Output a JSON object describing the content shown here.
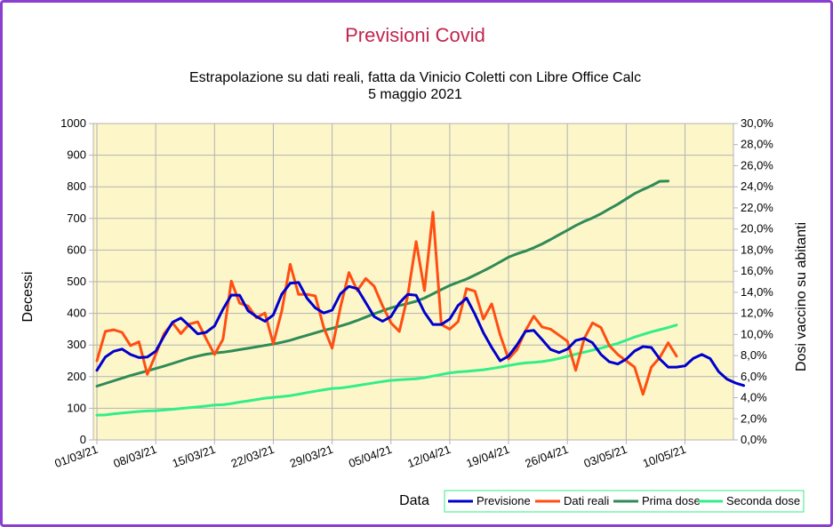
{
  "chart_data": {
    "type": "line",
    "title": "Previsioni Covid",
    "subtitle_line1": "Estrapolazione su dati reali, fatta da Vinicio Coletti con Libre Office Calc",
    "subtitle_line2": "5 maggio 2021",
    "xlabel": "Data",
    "ylabel": "Decessi",
    "y2label": "Dosi vaccino su abitanti",
    "x_start": "01/03/21",
    "x_days": 80,
    "ylim": [
      0,
      1000
    ],
    "y2lim": [
      0,
      0.3
    ],
    "x_ticks": [
      "01/03/21",
      "08/03/21",
      "15/03/21",
      "22/03/21",
      "29/03/21",
      "05/04/21",
      "12/04/21",
      "19/04/21",
      "26/04/21",
      "03/05/21",
      "10/05/21"
    ],
    "y_ticks": [
      "0",
      "100",
      "200",
      "300",
      "400",
      "500",
      "600",
      "700",
      "800",
      "900",
      "1000"
    ],
    "y2_ticks": [
      "0,0%",
      "2,0%",
      "4,0%",
      "6,0%",
      "8,0%",
      "10,0%",
      "12,0%",
      "14,0%",
      "16,0%",
      "18,0%",
      "20,0%",
      "22,0%",
      "24,0%",
      "26,0%",
      "28,0%",
      "30,0%"
    ],
    "grid": true,
    "legend_position": "bottom-right",
    "colors": {
      "plot_background": "#fdf6c9",
      "grid": "#b3b3b3",
      "Previsione": "#0000cc",
      "Dati reali": "#ff4e12",
      "Prima dose": "#2e8b57",
      "Seconda dose": "#33ee88"
    },
    "series": [
      {
        "name": "Previsione",
        "axis": "left",
        "start_day": 0,
        "values": [
          220,
          262,
          280,
          287,
          270,
          260,
          262,
          280,
          328,
          372,
          385,
          361,
          335,
          340,
          360,
          413,
          458,
          457,
          408,
          390,
          375,
          395,
          460,
          495,
          498,
          448,
          417,
          401,
          410,
          462,
          485,
          478,
          434,
          390,
          375,
          390,
          433,
          460,
          457,
          403,
          365,
          365,
          382,
          425,
          448,
          397,
          339,
          292,
          250,
          265,
          300,
          343,
          346,
          317,
          286,
          276,
          287,
          314,
          321,
          307,
          270,
          247,
          240,
          255,
          281,
          295,
          292,
          256,
          230,
          230,
          234,
          258,
          270,
          257,
          216,
          192,
          180,
          172
        ]
      },
      {
        "name": "Dati reali",
        "axis": "left",
        "start_day": 0,
        "values": [
          250,
          343,
          348,
          340,
          298,
          310,
          207,
          270,
          336,
          370,
          336,
          366,
          373,
          320,
          270,
          318,
          502,
          432,
          423,
          386,
          401,
          304,
          407,
          555,
          460,
          460,
          455,
          356,
          290,
          420,
          529,
          472,
          510,
          486,
          424,
          370,
          343,
          455,
          627,
          472,
          720,
          365,
          350,
          374,
          478,
          470,
          382,
          430,
          332,
          256,
          285,
          345,
          391,
          357,
          350,
          331,
          312,
          220,
          320,
          370,
          355,
          298,
          270,
          250,
          230,
          144,
          230,
          260,
          307,
          265
        ]
      },
      {
        "name": "Prima dose",
        "axis": "right",
        "start_day": 0,
        "values": [
          0.051,
          0.0535,
          0.056,
          0.0585,
          0.061,
          0.0633,
          0.0655,
          0.0677,
          0.07,
          0.0725,
          0.075,
          0.0775,
          0.0795,
          0.0812,
          0.0823,
          0.0832,
          0.0843,
          0.0856,
          0.0869,
          0.0882,
          0.0896,
          0.0909,
          0.0925,
          0.0945,
          0.0968,
          0.0992,
          0.1015,
          0.1038,
          0.1058,
          0.108,
          0.1105,
          0.1133,
          0.1165,
          0.1196,
          0.1225,
          0.1252,
          0.1274,
          0.1293,
          0.1315,
          0.1345,
          0.1385,
          0.1425,
          0.1465,
          0.1495,
          0.1525,
          0.1563,
          0.1603,
          0.1643,
          0.1688,
          0.1733,
          0.1765,
          0.179,
          0.1822,
          0.1858,
          0.19,
          0.1945,
          0.1988,
          0.2033,
          0.2072,
          0.2105,
          0.2145,
          0.219,
          0.2235,
          0.2285,
          0.2335,
          0.2375,
          0.241,
          0.2452,
          0.2455
        ]
      },
      {
        "name": "Seconda dose",
        "axis": "right",
        "start_day": 0,
        "values": [
          0.0235,
          0.0237,
          0.0248,
          0.0255,
          0.0262,
          0.027,
          0.0275,
          0.0277,
          0.0283,
          0.029,
          0.0298,
          0.0305,
          0.0313,
          0.0321,
          0.033,
          0.0334,
          0.0345,
          0.0358,
          0.037,
          0.0383,
          0.0395,
          0.0404,
          0.041,
          0.042,
          0.0433,
          0.0448,
          0.0462,
          0.0475,
          0.0488,
          0.0492,
          0.0503,
          0.0515,
          0.0528,
          0.0541,
          0.0554,
          0.0565,
          0.057,
          0.0575,
          0.058,
          0.059,
          0.0605,
          0.062,
          0.0635,
          0.0645,
          0.065,
          0.0657,
          0.0665,
          0.0677,
          0.069,
          0.0705,
          0.072,
          0.073,
          0.0735,
          0.0742,
          0.0755,
          0.0772,
          0.0792,
          0.0812,
          0.0832,
          0.085,
          0.087,
          0.0893,
          0.0915,
          0.0945,
          0.0975,
          0.1,
          0.1025,
          0.1045,
          0.1065,
          0.109
        ]
      }
    ]
  }
}
